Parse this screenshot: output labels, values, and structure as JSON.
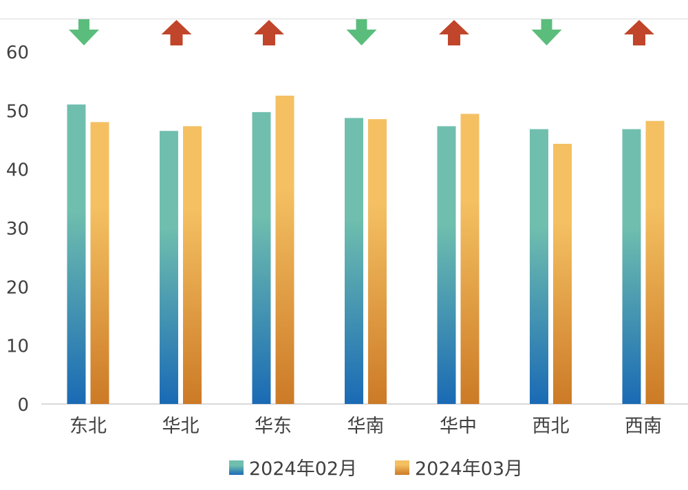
{
  "chart_data": {
    "type": "bar",
    "categories": [
      "东北",
      "华北",
      "华东",
      "华南",
      "华中",
      "西北",
      "西南"
    ],
    "series": [
      {
        "name": "2024年02月",
        "values": [
          51.0,
          46.5,
          49.7,
          48.7,
          47.3,
          46.8,
          46.8
        ]
      },
      {
        "name": "2024年03月",
        "values": [
          48.0,
          47.3,
          52.5,
          48.5,
          49.4,
          44.3,
          48.2
        ]
      }
    ],
    "trend_arrows": [
      "down",
      "up",
      "up",
      "down",
      "up",
      "down",
      "up"
    ],
    "yticks": [
      0,
      10,
      20,
      30,
      40,
      50,
      60
    ],
    "ylim": [
      0,
      60
    ],
    "legend_position": "bottom",
    "grid": false,
    "colors": {
      "series1_top": "#70bfae",
      "series1_bottom": "#1a6ab5",
      "series2_top": "#f4c062",
      "series2_bottom": "#cc7a26",
      "arrow_up": "#c0452a",
      "arrow_down": "#5bbd7c",
      "axis": "#d9d9d9"
    }
  }
}
